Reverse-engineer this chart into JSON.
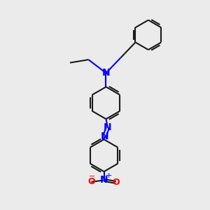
{
  "bg_color": "#ebebeb",
  "bond_color": "#1a1a1a",
  "n_color": "#0000ff",
  "o_color": "#ff0000",
  "line_width": 1.5,
  "fig_size": [
    3.0,
    3.0
  ],
  "dpi": 100,
  "xlim": [
    0,
    10
  ],
  "ylim": [
    0,
    10
  ]
}
